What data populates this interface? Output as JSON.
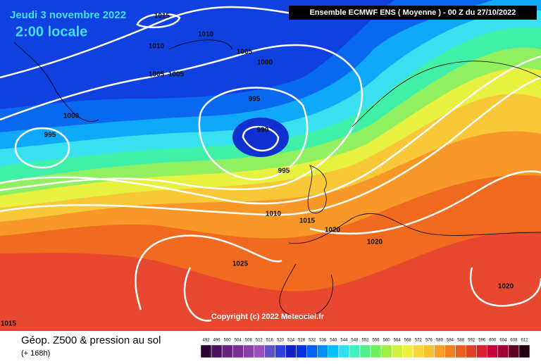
{
  "header": {
    "date": "Jeudi 3 novembre 2022",
    "time": "2:00 locale",
    "model": "Ensemble ECMWF ENS  ( Moyenne )  -  00 Z du 27/10/2022"
  },
  "isobar_labels": [
    "1015",
    "1010",
    "1010",
    "1005",
    "1005",
    "1005",
    "1000",
    "1000",
    "995",
    "995",
    "990",
    "995",
    "1010",
    "1015",
    "1020",
    "1020",
    "1025",
    "1020",
    "1015"
  ],
  "copyright": "Copyright (c) 2022 Meteociel.fr",
  "legend": {
    "title": "Géop. Z500 & pression au sol",
    "subtitle": "(+ 168h)",
    "scale": [
      492,
      496,
      500,
      504,
      508,
      512,
      516,
      520,
      524,
      528,
      532,
      536,
      540,
      544,
      548,
      552,
      556,
      560,
      564,
      568,
      572,
      576,
      580,
      584,
      588,
      592,
      596,
      600,
      604,
      608,
      612
    ],
    "colors": [
      "#2a0030",
      "#4a1060",
      "#6a2080",
      "#7a3090",
      "#8a40a8",
      "#9a50b8",
      "#6050c8",
      "#3040d8",
      "#1020c8",
      "#0030e0",
      "#0060f0",
      "#0090f8",
      "#00c0f8",
      "#30e0f0",
      "#40f0c0",
      "#50f090",
      "#70f060",
      "#a0f040",
      "#d0f040",
      "#f0f040",
      "#f8d838",
      "#f8c030",
      "#f8a028",
      "#f08020",
      "#e86020",
      "#e04028",
      "#d82030",
      "#c80040",
      "#a00030",
      "#600020",
      "#200010"
    ]
  }
}
